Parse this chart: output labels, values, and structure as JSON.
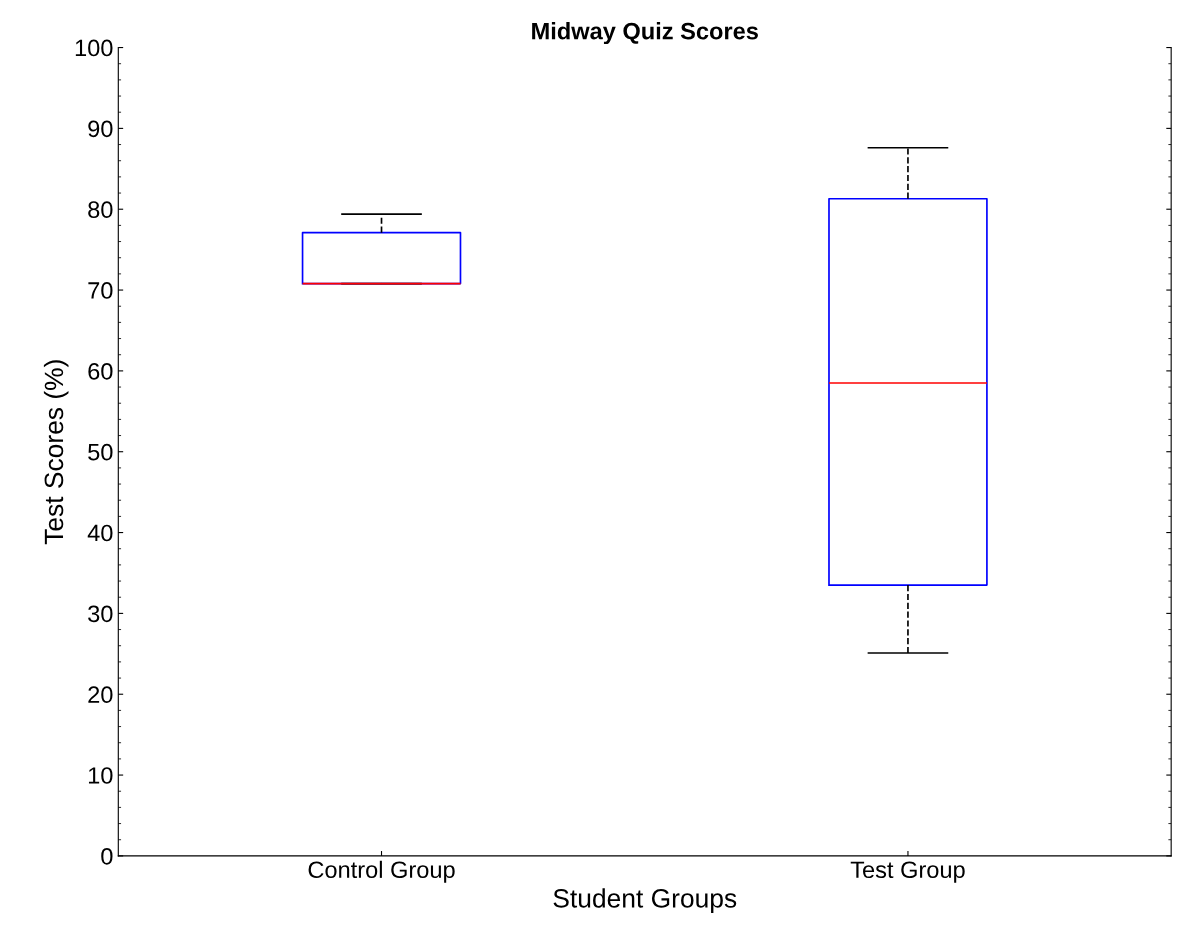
{
  "chart_data": {
    "type": "box",
    "title": "Midway Quiz Scores",
    "xlabel": "Student Groups",
    "ylabel": "Test Scores (%)",
    "categories": [
      "Control Group",
      "Test Group"
    ],
    "boxes": [
      {
        "low": 70.8,
        "q1": 70.8,
        "median": 70.8,
        "q3": 77.1,
        "high": 79.4
      },
      {
        "low": 25.1,
        "q1": 33.5,
        "median": 58.5,
        "q3": 81.3,
        "high": 87.6
      }
    ],
    "ylim": [
      0,
      100
    ],
    "yticks": [
      0,
      10,
      20,
      30,
      40,
      50,
      60,
      70,
      80,
      90,
      100
    ],
    "grid": false,
    "line_style": "dashed"
  }
}
